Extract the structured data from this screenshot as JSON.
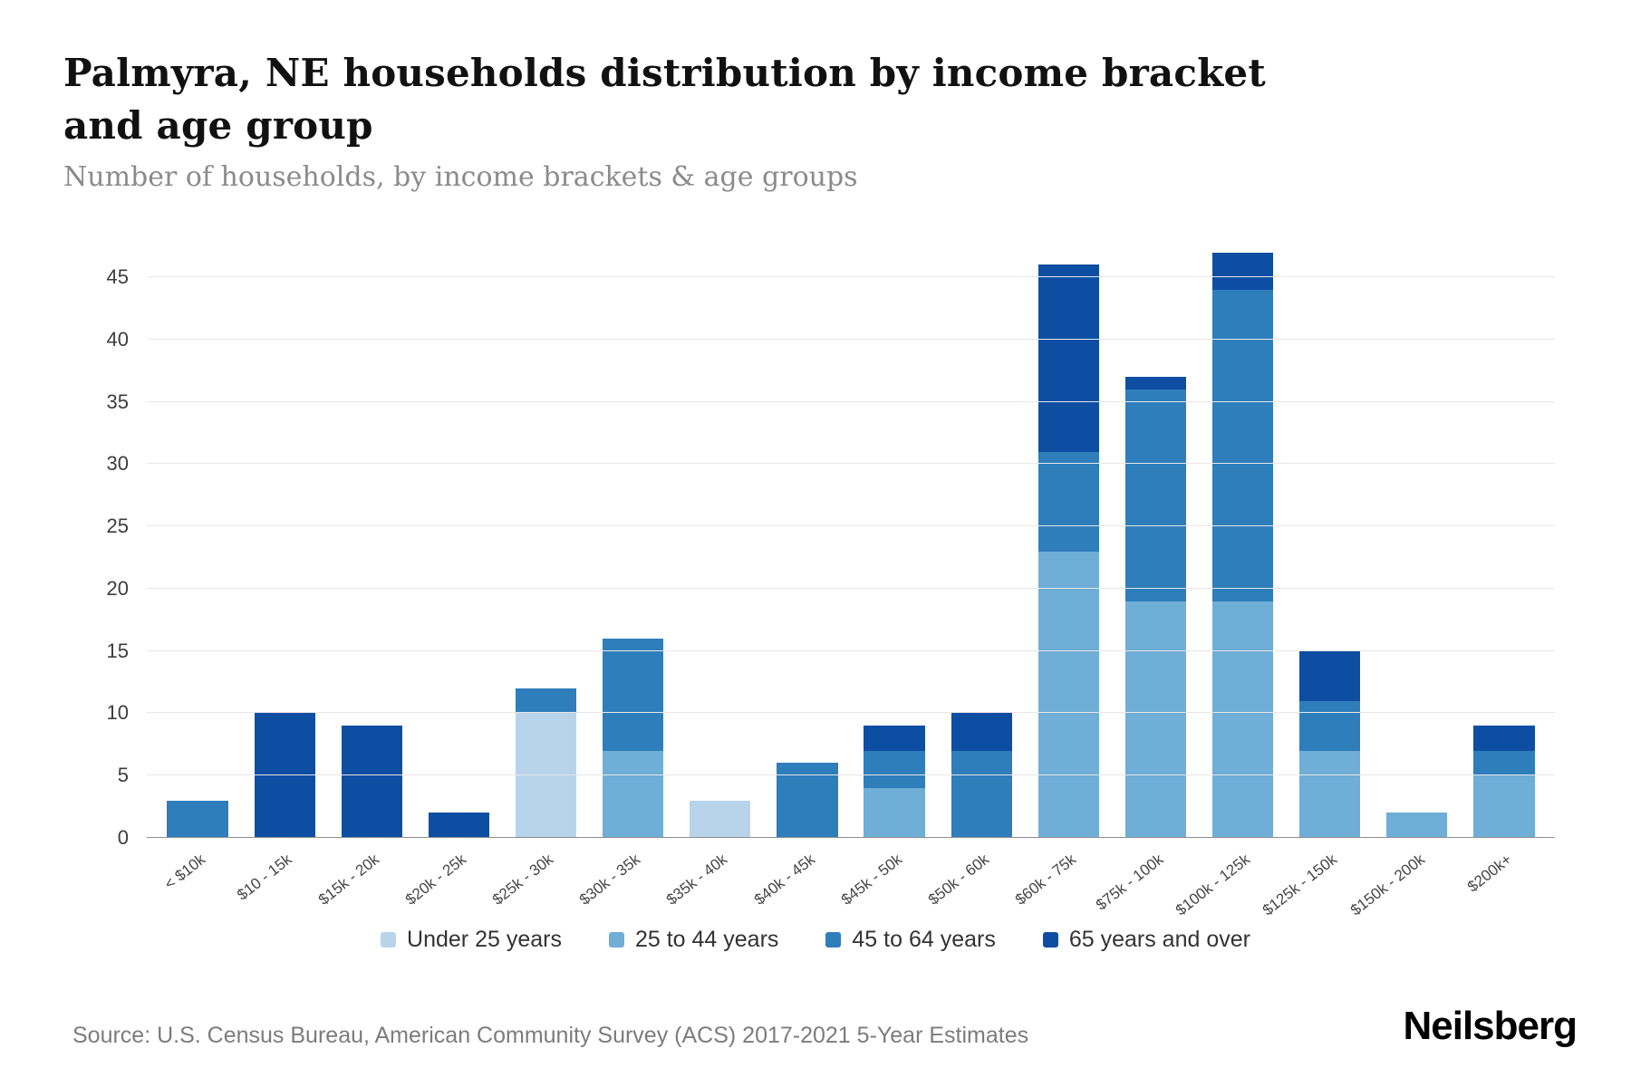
{
  "page": {
    "title": "Palmyra, NE households distribution by income bracket and age group",
    "subtitle": "Number of households, by income brackets & age groups",
    "source": "Source: U.S. Census Bureau, American Community Survey (ACS) 2017-2021 5-Year Estimates",
    "brand": "Neilsberg"
  },
  "chart_data": {
    "type": "bar",
    "stacked": true,
    "title": "Palmyra, NE households distribution by income bracket and age group",
    "subtitle": "Number of households, by income brackets & age groups",
    "xlabel": "",
    "ylabel": "Number of households",
    "categories": [
      "< $10k",
      "$10 - 15k",
      "$15k - 20k",
      "$20k - 25k",
      "$25k - 30k",
      "$30k - 35k",
      "$35k - 40k",
      "$40k - 45k",
      "$45k - 50k",
      "$50k - 60k",
      "$60k - 75k",
      "$75k - 100k",
      "$100k - 125k",
      "$125k - 150k",
      "$150k - 200k",
      "$200k+"
    ],
    "series": [
      {
        "name": "Under 25 years",
        "color": "#b7d4ea",
        "values": [
          0,
          0,
          0,
          0,
          10,
          0,
          3,
          0,
          0,
          0,
          0,
          0,
          0,
          0,
          0,
          0
        ]
      },
      {
        "name": "25 to 44 years",
        "color": "#6faed6",
        "values": [
          0,
          0,
          0,
          0,
          0,
          7,
          0,
          0,
          4,
          0,
          23,
          19,
          19,
          7,
          2,
          5
        ]
      },
      {
        "name": "45 to 64 years",
        "color": "#2e7ebc",
        "values": [
          3,
          0,
          0,
          0,
          2,
          9,
          0,
          6,
          3,
          7,
          8,
          17,
          25,
          4,
          0,
          2
        ]
      },
      {
        "name": "65 years and over",
        "color": "#0d4ea3",
        "values": [
          0,
          10,
          9,
          2,
          0,
          0,
          0,
          0,
          2,
          3,
          15,
          1,
          3,
          4,
          0,
          2
        ]
      }
    ],
    "totals": [
      3,
      10,
      9,
      2,
      12,
      16,
      3,
      6,
      9,
      10,
      46,
      37,
      47,
      15,
      2,
      9
    ],
    "ylim": [
      0,
      48
    ],
    "yticks": [
      0,
      5,
      10,
      15,
      20,
      25,
      30,
      35,
      40,
      45
    ],
    "grid": "horizontal",
    "legend_position": "bottom"
  }
}
